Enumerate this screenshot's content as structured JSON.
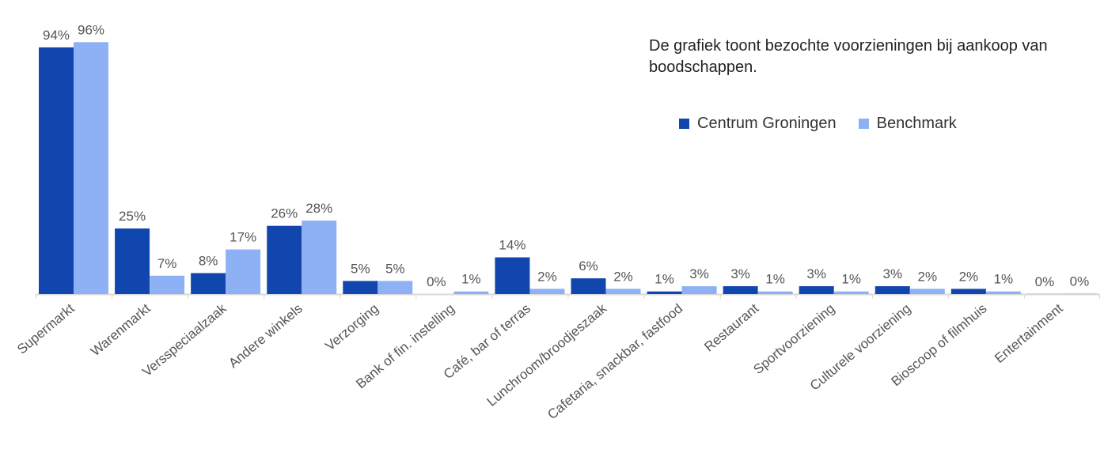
{
  "chart_data": {
    "type": "bar",
    "annotation": "De grafiek toont bezochte voorzieningen bij aankoop van boodschappen.",
    "categories": [
      "Supermarkt",
      "Warenmarkt",
      "Versspeciaalzaak",
      "Andere winkels",
      "Verzorging",
      "Bank of fin. instelling",
      "Café, bar of terras",
      "Lunchroom/broodjeszaak",
      "Cafetaria, snackbar, fastfood",
      "Restaurant",
      "Sportvoorziening",
      "Culturele voorziening",
      "Bioscoop of filmhuis",
      "Entertainment"
    ],
    "series": [
      {
        "name": "Centrum Groningen",
        "color": "#1146AF",
        "values": [
          94,
          25,
          8,
          26,
          5,
          0,
          14,
          6,
          1,
          3,
          3,
          3,
          2,
          0.05
        ],
        "labels": [
          "94%",
          "25%",
          "8%",
          "26%",
          "5%",
          "0%",
          "14%",
          "6%",
          "1%",
          "3%",
          "3%",
          "3%",
          "2%",
          "0%"
        ]
      },
      {
        "name": "Benchmark",
        "color": "#8EB1F6",
        "values": [
          96,
          7,
          17,
          28,
          5,
          1,
          2,
          2,
          3,
          1,
          1,
          2,
          1,
          0.2
        ],
        "labels": [
          "96%",
          "7%",
          "17%",
          "28%",
          "5%",
          "1%",
          "2%",
          "2%",
          "3%",
          "1%",
          "1%",
          "2%",
          "1%",
          "0%"
        ]
      }
    ],
    "ylim": [
      0,
      100
    ],
    "grid": false,
    "legend_position": "top-right"
  }
}
